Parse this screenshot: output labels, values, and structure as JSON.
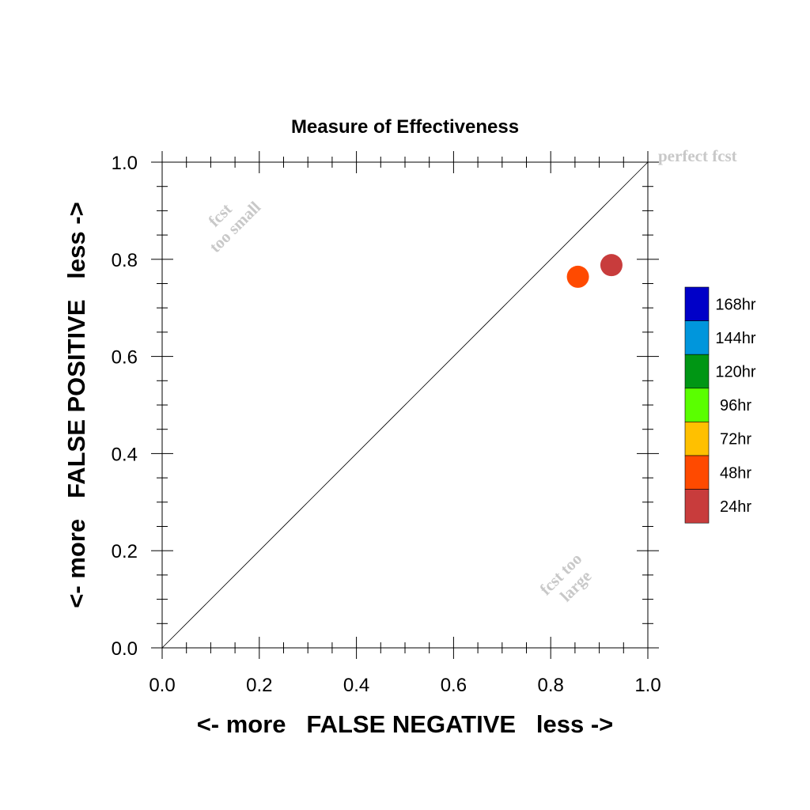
{
  "chart_data": {
    "type": "scatter",
    "title": "Measure of Effectiveness",
    "xlabel": "<- more   FALSE NEGATIVE   less ->",
    "ylabel": "<- more   FALSE POSITIVE   less ->",
    "xlim": [
      0,
      1
    ],
    "ylim": [
      0,
      1
    ],
    "xticks": [
      "0.0",
      "0.2",
      "0.4",
      "0.6",
      "0.8",
      "1.0"
    ],
    "yticks": [
      "0.0",
      "0.2",
      "0.4",
      "0.6",
      "0.8",
      "1.0"
    ],
    "grid": false,
    "diagonal_line": true,
    "points": [
      {
        "label": "24hr",
        "x": 0.925,
        "y": 0.788,
        "color": "#c83c3c"
      },
      {
        "label": "48hr",
        "x": 0.856,
        "y": 0.764,
        "color": "#ff4a00"
      }
    ],
    "annotations": {
      "perfect": "perfect fcst",
      "too_small_line1": "fcst",
      "too_small_line2": "too small",
      "too_large_line1": "fcst too",
      "too_large_line2": "large"
    },
    "legend": {
      "position": "right",
      "entries": [
        {
          "label": "168hr",
          "color": "#0000c8"
        },
        {
          "label": "144hr",
          "color": "#0096dc"
        },
        {
          "label": "120hr",
          "color": "#009614"
        },
        {
          "label": "96hr",
          "color": "#5aff00"
        },
        {
          "label": "72hr",
          "color": "#ffc000"
        },
        {
          "label": "48hr",
          "color": "#ff4a00"
        },
        {
          "label": "24hr",
          "color": "#c83c3c"
        }
      ]
    }
  }
}
